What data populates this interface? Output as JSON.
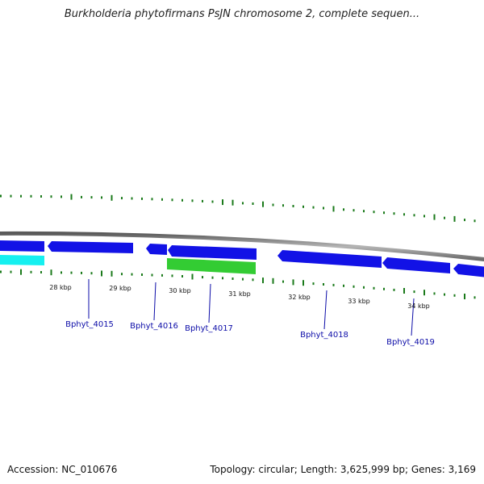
{
  "title": "Burkholderia phytofirmans PsJN chromosome 2, complete sequen...",
  "footer": {
    "accession": "Accession: NC_010676",
    "summary": "Topology: circular; Length: 3,625,999 bp; Genes: 3,169"
  },
  "colors": {
    "backbone": "#8c8c8c",
    "forward_gene": "#1212e6",
    "cyan_gene": "#15f0f0",
    "green_gene": "#33cc33",
    "gc_ticks": "#1a7a1a",
    "gene_label": "#0c0ca8",
    "scale_label": "#111111"
  },
  "scale_labels": [
    "28 kbp",
    "29 kbp",
    "30 kbp",
    "31 kbp",
    "32 kbp",
    "33 kbp",
    "34 kbp"
  ],
  "gene_labels": [
    "Bphyt_4015",
    "Bphyt_4016",
    "Bphyt_4017",
    "Bphyt_4018",
    "Bphyt_4019"
  ]
}
